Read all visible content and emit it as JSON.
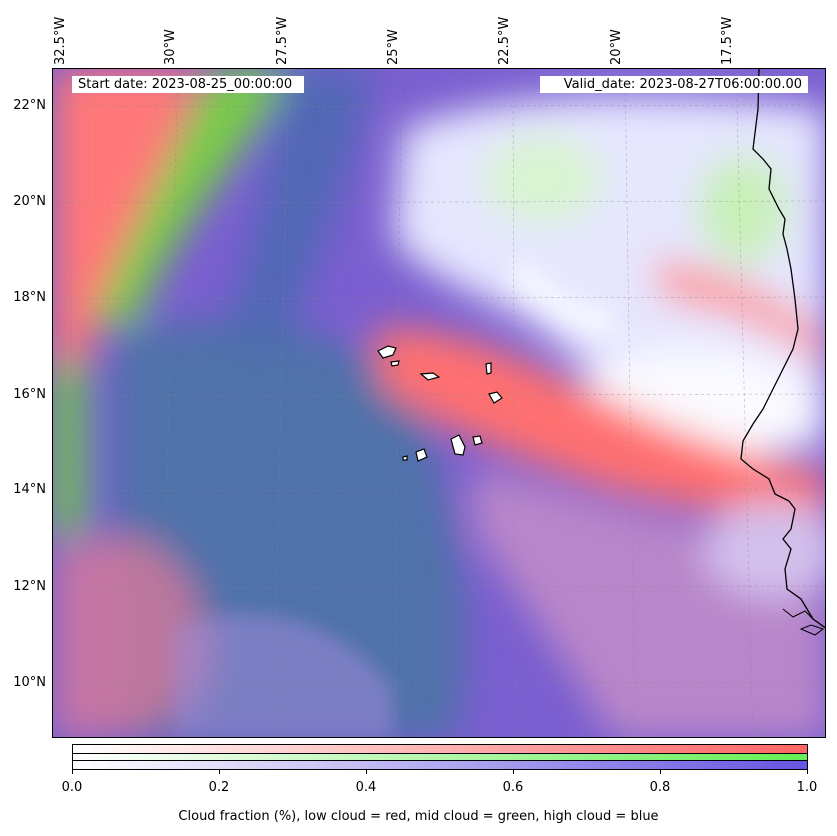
{
  "header": {
    "start_date": "Start date: 2023-08-25_00:00:00",
    "valid_date": "Valid_date: 2023-08-27T06:00:00.00"
  },
  "axes": {
    "longitude_labels": [
      "32.5°W",
      "30°W",
      "27.5°W",
      "25°W",
      "22.5°W",
      "20°W",
      "17.5°W"
    ],
    "latitude_labels": [
      "22°N",
      "20°N",
      "18°N",
      "16°N",
      "14°N",
      "12°N",
      "10°N"
    ]
  },
  "colorbar": {
    "tick_labels": [
      "0.0",
      "0.2",
      "0.4",
      "0.6",
      "0.8",
      "1.0"
    ],
    "caption": "Cloud fraction (%), low cloud = red, mid cloud = green, high cloud = blue",
    "range": [
      0.0,
      1.0
    ],
    "channels": [
      {
        "name": "low cloud",
        "color": "#ff6666"
      },
      {
        "name": "mid cloud",
        "color": "#66ee55"
      },
      {
        "name": "high cloud",
        "color": "#6655e0"
      }
    ]
  },
  "colors": {
    "low_cloud": "#ff7a7a",
    "mid_cloud": "#7ad04a",
    "high_cloud": "#7a5fd0",
    "clear_white": "#f4f4ff",
    "deep_blue": "#4a6aa8",
    "coastline": "#000000"
  },
  "icons": [
    "coastline-west-africa",
    "cape-verde-islands"
  ]
}
